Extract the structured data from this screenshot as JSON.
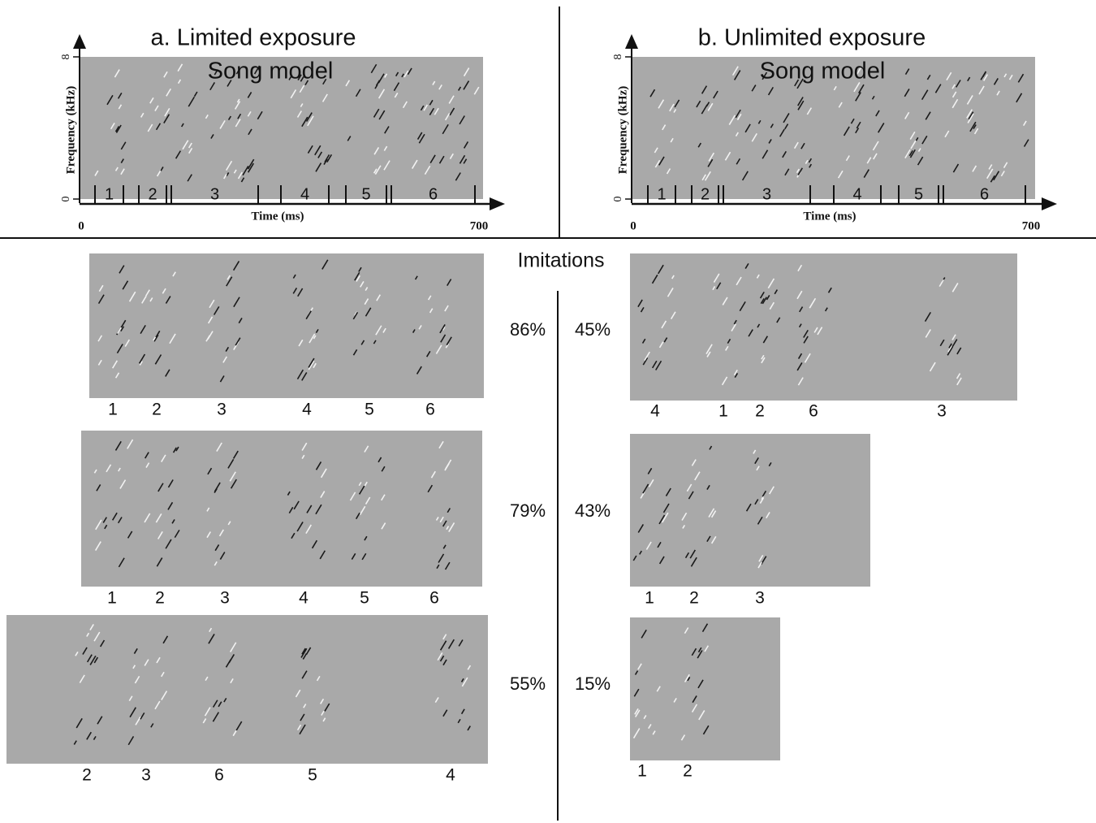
{
  "imitations_label": "Imitations",
  "panels": [
    {
      "title": "a. Limited exposure",
      "song_model": {
        "label": "Song model",
        "y_axis_label": "Frequency (kHz)",
        "y_ticks": [
          "8",
          "0"
        ],
        "x_axis_label": "Time (ms)",
        "x_ticks": [
          "0",
          "700"
        ],
        "syllables": [
          "1",
          "2",
          "3",
          "4",
          "5",
          "6"
        ]
      },
      "imitations": [
        {
          "similarity": "86%",
          "syllables": [
            "1",
            "2",
            "3",
            "4",
            "5",
            "6"
          ]
        },
        {
          "similarity": "79%",
          "syllables": [
            "1",
            "2",
            "3",
            "4",
            "5",
            "6"
          ]
        },
        {
          "similarity": "55%",
          "syllables": [
            "2",
            "3",
            "6",
            "5",
            "4"
          ]
        }
      ]
    },
    {
      "title": "b. Unlimited exposure",
      "song_model": {
        "label": "Song model",
        "y_axis_label": "Frequency (kHz)",
        "y_ticks": [
          "8",
          "0"
        ],
        "x_axis_label": "Time (ms)",
        "x_ticks": [
          "0",
          "700"
        ],
        "syllables": [
          "1",
          "2",
          "3",
          "4",
          "5",
          "6"
        ]
      },
      "imitations": [
        {
          "similarity": "45%",
          "syllables": [
            "4",
            "1",
            "2",
            "6",
            "3"
          ]
        },
        {
          "similarity": "43%",
          "syllables": [
            "1",
            "2",
            "3"
          ]
        },
        {
          "similarity": "15%",
          "syllables": [
            "1",
            "2"
          ]
        }
      ]
    }
  ]
}
